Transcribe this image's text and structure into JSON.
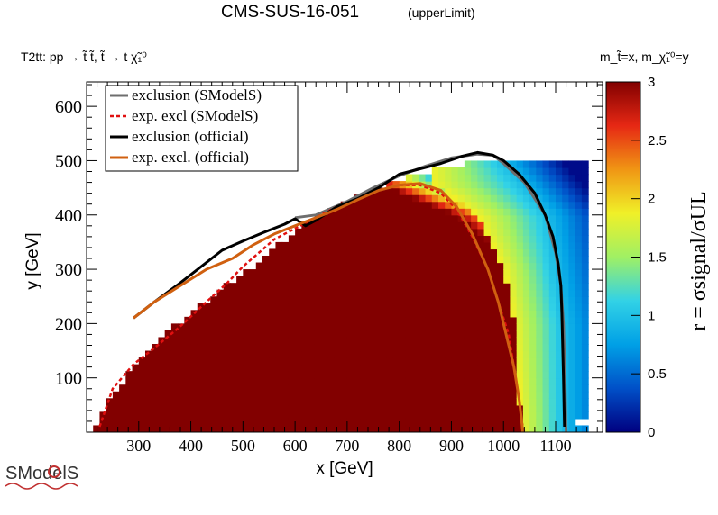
{
  "chart_data": {
    "type": "heatmap",
    "title": "CMS-SUS-16-051",
    "subtitle": "(upperLimit)",
    "process_label": "T2tt: pp → t̃ t̃, t̃ → t χ̃₁⁰",
    "mass_label": "m_t̃=x, m_χ̃₁⁰=y",
    "xlabel": "x [GeV]",
    "ylabel": "y [GeV]",
    "zlabel": "r = σsignal/σUL",
    "xlim": [
      200,
      1190
    ],
    "ylim": [
      0,
      645
    ],
    "zlim": [
      0,
      3
    ],
    "x_ticks": [
      "300",
      "400",
      "500",
      "600",
      "700",
      "800",
      "900",
      "1000",
      "1100"
    ],
    "y_ticks": [
      "100",
      "200",
      "300",
      "400",
      "500",
      "600"
    ],
    "z_ticks": [
      "0",
      "0.5",
      "1",
      "1.5",
      "2",
      "2.5",
      "3"
    ],
    "grid": false,
    "legend_position": "top-left",
    "colormap": [
      "#000080",
      "#0050c8",
      "#00a0e6",
      "#32d2e6",
      "#a0f064",
      "#f0f028",
      "#f09614",
      "#e62814",
      "#820000"
    ],
    "heatmap_model": {
      "x_bin": 12.5,
      "y_bin": 12.5,
      "lower_edge": [
        [
          200,
          0
        ],
        [
          225,
          20
        ],
        [
          250,
          70
        ],
        [
          290,
          120
        ],
        [
          360,
          190
        ],
        [
          420,
          235
        ],
        [
          470,
          270
        ],
        [
          520,
          305
        ],
        [
          560,
          340
        ],
        [
          600,
          370
        ],
        [
          650,
          400
        ],
        [
          700,
          425
        ],
        [
          760,
          450
        ],
        [
          820,
          470
        ],
        [
          880,
          485
        ],
        [
          930,
          495
        ],
        [
          990,
          505
        ]
      ],
      "upper_edge": [
        [
          400,
          250
        ],
        [
          450,
          420
        ],
        [
          480,
          520
        ],
        [
          520,
          575
        ],
        [
          570,
          610
        ],
        [
          600,
          640
        ],
        [
          1190,
          640
        ]
      ],
      "max_x": [
        [
          0,
          1175
        ],
        [
          450,
          1165
        ],
        [
          600,
          1150
        ]
      ],
      "cutoff_y": [
        [
          0,
          1190
        ],
        [
          15,
          1138
        ],
        [
          30,
          1160
        ],
        [
          630,
          1160
        ],
        [
          645,
          1025
        ]
      ],
      "empty_box": {
        "x": [
          600,
          700
        ],
        "y": [
          290,
          385
        ]
      },
      "plateau_r": 3.0,
      "obs_limit_x": [
        [
          0,
          1110
        ],
        [
          200,
          1110
        ],
        [
          400,
          1080
        ],
        [
          500,
          990
        ]
      ],
      "exp_limit_x": [
        [
          0,
          1035
        ],
        [
          200,
          1020
        ],
        [
          300,
          1000
        ],
        [
          400,
          950
        ],
        [
          460,
          860
        ]
      ]
    },
    "series": [
      {
        "name": "exclusion (SModelS)",
        "color": "#6e6e6e",
        "dash": "solid",
        "x": [
          600,
          640,
          700,
          750,
          800,
          850,
          900,
          950,
          980,
          1000,
          1040,
          1080,
          1100,
          1110,
          1115,
          1118,
          1120
        ],
        "y": [
          395,
          400,
          425,
          450,
          472,
          490,
          505,
          512,
          510,
          495,
          460,
          400,
          330,
          270,
          200,
          100,
          0
        ]
      },
      {
        "name": "exp. excl (SModelS)",
        "color": "#e01010",
        "dash": "dashed",
        "x": [
          225,
          250,
          290,
          330,
          380,
          430,
          470,
          500,
          530,
          560,
          600,
          640,
          680,
          720,
          760,
          800,
          840,
          880,
          910,
          940,
          970,
          990,
          1010,
          1020,
          1030,
          1035,
          1038,
          1040
        ],
        "y": [
          10,
          80,
          125,
          155,
          195,
          240,
          275,
          305,
          330,
          355,
          375,
          395,
          415,
          430,
          445,
          455,
          455,
          440,
          410,
          360,
          300,
          240,
          180,
          120,
          60,
          20,
          5,
          0
        ]
      },
      {
        "name": "exclusion (official)",
        "color": "#000000",
        "dash": "solid",
        "x": [
          290,
          330,
          380,
          420,
          460,
          500,
          540,
          580,
          600,
          620,
          640,
          680,
          720,
          760,
          800,
          840,
          880,
          920,
          950,
          980,
          1000,
          1030,
          1060,
          1080,
          1095,
          1105,
          1110,
          1112,
          1115,
          1117
        ],
        "y": [
          210,
          240,
          275,
          305,
          335,
          352,
          368,
          383,
          393,
          380,
          390,
          415,
          430,
          450,
          475,
          485,
          495,
          508,
          515,
          510,
          500,
          475,
          440,
          400,
          360,
          310,
          270,
          220,
          100,
          10
        ]
      },
      {
        "name": "exp. excl. (official)",
        "color": "#d06010",
        "dash": "solid",
        "x": [
          290,
          330,
          380,
          430,
          480,
          520,
          560,
          600,
          640,
          680,
          720,
          760,
          800,
          840,
          880,
          910,
          940,
          970,
          990,
          1005,
          1020,
          1030,
          1035,
          1037
        ],
        "y": [
          210,
          240,
          270,
          300,
          320,
          345,
          365,
          380,
          395,
          410,
          428,
          445,
          455,
          458,
          445,
          415,
          365,
          300,
          240,
          180,
          120,
          60,
          20,
          0
        ]
      }
    ]
  },
  "logo": {
    "text": "SModelS"
  }
}
